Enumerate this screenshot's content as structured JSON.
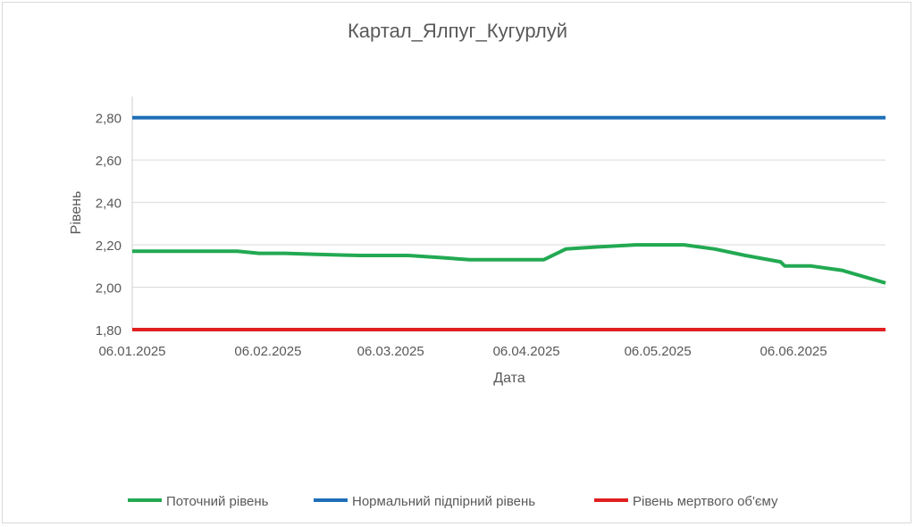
{
  "chart_data": {
    "type": "line",
    "title": "Картал_Ялпуг_Кугурлуй",
    "xlabel": "Дата",
    "ylabel": "Рівень",
    "ylim": [
      1.8,
      2.9
    ],
    "xlim": [
      "2025-01-06",
      "2025-06-27"
    ],
    "y_ticks": [
      "1,80",
      "2,00",
      "2,20",
      "2,40",
      "2,60",
      "2,80"
    ],
    "y_tick_values": [
      1.8,
      2.0,
      2.2,
      2.4,
      2.6,
      2.8
    ],
    "x_ticks": [
      "06.01.2025",
      "06.02.2025",
      "06.03.2025",
      "06.04.2025",
      "06.05.2025",
      "06.06.2025"
    ],
    "x_tick_values": [
      "2025-01-06",
      "2025-02-06",
      "2025-03-06",
      "2025-04-06",
      "2025-05-06",
      "2025-06-06"
    ],
    "grid": true,
    "legend_position": "bottom",
    "series": [
      {
        "name": "Поточний рівень",
        "color": "#22a952",
        "x": [
          "2025-01-06",
          "2025-01-13",
          "2025-01-20",
          "2025-01-30",
          "2025-02-04",
          "2025-02-10",
          "2025-02-17",
          "2025-02-27",
          "2025-03-10",
          "2025-03-17",
          "2025-03-24",
          "2025-03-31",
          "2025-04-10",
          "2025-04-15",
          "2025-04-22",
          "2025-05-01",
          "2025-05-12",
          "2025-05-19",
          "2025-05-26",
          "2025-06-03",
          "2025-06-04",
          "2025-06-10",
          "2025-06-17",
          "2025-06-27"
        ],
        "values": [
          2.17,
          2.17,
          2.17,
          2.17,
          2.16,
          2.16,
          2.155,
          2.15,
          2.15,
          2.14,
          2.13,
          2.13,
          2.13,
          2.18,
          2.19,
          2.2,
          2.2,
          2.18,
          2.15,
          2.12,
          2.1,
          2.1,
          2.08,
          2.02
        ]
      },
      {
        "name": "Нормальний підпірний рівень",
        "color": "#1f6fb8",
        "x": [
          "2025-01-06",
          "2025-06-27"
        ],
        "values": [
          2.8,
          2.8
        ]
      },
      {
        "name": "Рівень мертвого об'єму",
        "color": "#e02020",
        "x": [
          "2025-01-06",
          "2025-06-27"
        ],
        "values": [
          1.8,
          1.8
        ]
      }
    ]
  }
}
